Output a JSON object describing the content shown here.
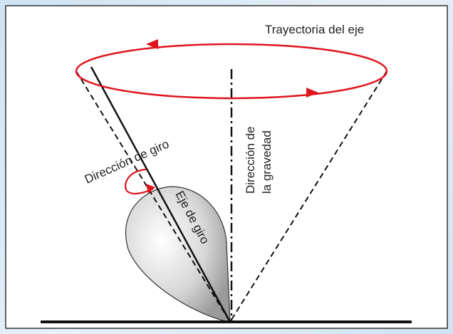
{
  "trajectory_label": "Trayectoria del eje",
  "spin_direction_label": "Dirección de giro",
  "spin_axis_label": "Eje de giro",
  "gravity_label": {
    "line1": "Dirección de",
    "line2": "la gravedad"
  }
}
